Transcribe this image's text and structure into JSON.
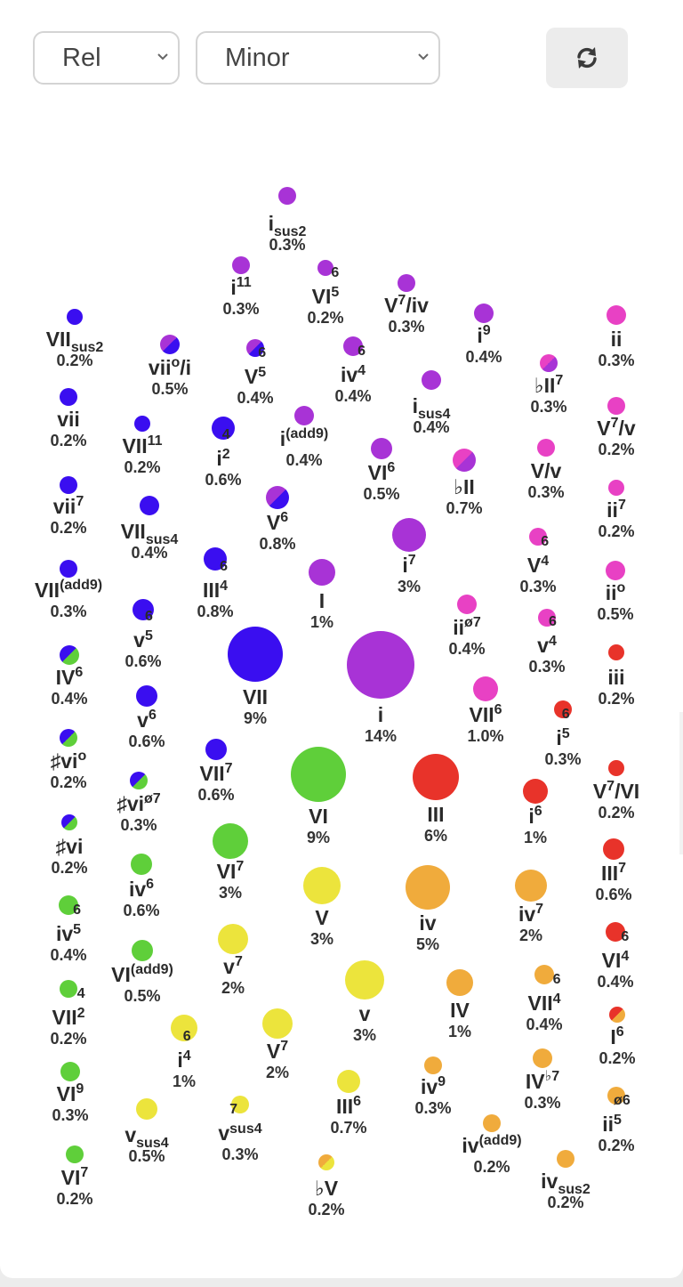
{
  "controls": {
    "mode_select": {
      "value": "Rel"
    },
    "scale_select": {
      "value": "Minor"
    },
    "refresh_button": {
      "icon": "refresh-icon"
    }
  },
  "colors": {
    "violet": "#a833d6",
    "blue": "#3a0ef0",
    "green": "#5fcf3a",
    "yellow": "#ece43c",
    "orange": "#f0ab3c",
    "red": "#e8332a",
    "pink": "#e841c4"
  },
  "chords": [
    {
      "id": "i-sus2",
      "base": "i",
      "sup": "",
      "sub": "sus2",
      "pct": "0.3%",
      "color": "violet"
    },
    {
      "id": "i-11",
      "base": "i",
      "sup": "11",
      "sub": "",
      "pct": "0.3%",
      "color": "violet"
    },
    {
      "id": "VI-6-5",
      "base": "VI",
      "sup": "6",
      "sub": "5",
      "pct": "0.2%",
      "color": "violet"
    },
    {
      "id": "V7-of-iv",
      "base": "V",
      "sup": "7",
      "sub": "",
      "tail": "/iv",
      "pct": "0.3%",
      "color": "violet"
    },
    {
      "id": "i-9",
      "base": "i",
      "sup": "9",
      "sub": "",
      "pct": "0.4%",
      "color": "violet"
    },
    {
      "id": "ii",
      "base": "ii",
      "sup": "",
      "sub": "",
      "pct": "0.3%",
      "color": "pink"
    },
    {
      "id": "VII-sus2",
      "base": "VII",
      "sup": "",
      "sub": "sus2",
      "pct": "0.2%",
      "color": "blue"
    },
    {
      "id": "vii-dim-of-i",
      "base": "vii",
      "sup": "o",
      "sub": "",
      "tail": "/i",
      "pct": "0.5%",
      "color": "violet",
      "color2": "blue"
    },
    {
      "id": "V-6-5",
      "base": "V",
      "sup": "6",
      "sub": "5",
      "pct": "0.4%",
      "color": "violet",
      "color2": "blue"
    },
    {
      "id": "iv-6-4",
      "base": "iv",
      "sup": "6",
      "sub": "4",
      "pct": "0.4%",
      "color": "violet"
    },
    {
      "id": "i-sus4",
      "base": "i",
      "sup": "",
      "sub": "sus4",
      "pct": "0.4%",
      "color": "violet"
    },
    {
      "id": "bII-7",
      "base": "♭II",
      "sup": "7",
      "sub": "",
      "pct": "0.3%",
      "color": "pink",
      "color2": "violet"
    },
    {
      "id": "V7-of-v",
      "base": "V",
      "sup": "7",
      "sub": "",
      "tail": "/v",
      "pct": "0.2%",
      "color": "pink"
    },
    {
      "id": "vii",
      "base": "vii",
      "sup": "",
      "sub": "",
      "pct": "0.2%",
      "color": "blue"
    },
    {
      "id": "VII-11",
      "base": "VII",
      "sup": "11",
      "sub": "",
      "pct": "0.2%",
      "color": "blue"
    },
    {
      "id": "i-4-2",
      "base": "i",
      "sup": "4",
      "sub": "2",
      "pct": "0.6%",
      "color": "blue"
    },
    {
      "id": "i-add9",
      "base": "i",
      "sup": "(add9)",
      "sub": "",
      "pct": "0.4%",
      "color": "violet"
    },
    {
      "id": "VI-6",
      "base": "VI",
      "sup": "6",
      "sub": "",
      "pct": "0.5%",
      "color": "violet"
    },
    {
      "id": "bII",
      "base": "♭II",
      "sup": "",
      "sub": "",
      "pct": "0.7%",
      "color": "pink",
      "color2": "violet"
    },
    {
      "id": "V-of-v",
      "base": "V/v",
      "sup": "",
      "sub": "",
      "pct": "0.3%",
      "color": "pink"
    },
    {
      "id": "vii-7",
      "base": "vii",
      "sup": "7",
      "sub": "",
      "pct": "0.2%",
      "color": "blue"
    },
    {
      "id": "V-6",
      "base": "V",
      "sup": "6",
      "sub": "",
      "pct": "0.8%",
      "color": "violet",
      "color2": "blue"
    },
    {
      "id": "ii-7",
      "base": "ii",
      "sup": "7",
      "sub": "",
      "pct": "0.2%",
      "color": "pink"
    },
    {
      "id": "VII-sus4",
      "base": "VII",
      "sup": "",
      "sub": "sus4",
      "pct": "0.4%",
      "color": "blue"
    },
    {
      "id": "i-7",
      "base": "i",
      "sup": "7",
      "sub": "",
      "pct": "3%",
      "color": "violet"
    },
    {
      "id": "V-6-4",
      "base": "V",
      "sup": "6",
      "sub": "4",
      "pct": "0.3%",
      "color": "pink"
    },
    {
      "id": "VII-add9",
      "base": "VII",
      "sup": "(add9)",
      "sub": "",
      "pct": "0.3%",
      "color": "blue"
    },
    {
      "id": "III-6-4",
      "base": "III",
      "sup": "6",
      "sub": "4",
      "pct": "0.8%",
      "color": "blue"
    },
    {
      "id": "I",
      "base": "I",
      "sup": "",
      "sub": "",
      "pct": "1%",
      "color": "violet"
    },
    {
      "id": "ii-dim",
      "base": "ii",
      "sup": "o",
      "sub": "",
      "pct": "0.5%",
      "color": "pink"
    },
    {
      "id": "v-6-5",
      "base": "v",
      "sup": "6",
      "sub": "5",
      "pct": "0.6%",
      "color": "blue"
    },
    {
      "id": "ii-hdim7",
      "base": "ii",
      "sup": "ø7",
      "sub": "",
      "pct": "0.4%",
      "color": "pink"
    },
    {
      "id": "v-6-4",
      "base": "v",
      "sup": "6",
      "sub": "4",
      "pct": "0.3%",
      "color": "pink"
    },
    {
      "id": "IV-6",
      "base": "IV",
      "sup": "6",
      "sub": "",
      "pct": "0.4%",
      "color": "blue",
      "color2": "green"
    },
    {
      "id": "VII",
      "base": "VII",
      "sup": "",
      "sub": "",
      "pct": "9%",
      "color": "blue"
    },
    {
      "id": "i",
      "base": "i",
      "sup": "",
      "sub": "",
      "pct": "14%",
      "color": "violet"
    },
    {
      "id": "iii",
      "base": "iii",
      "sup": "",
      "sub": "",
      "pct": "0.2%",
      "color": "red"
    },
    {
      "id": "VII-6",
      "base": "VII",
      "sup": "6",
      "sub": "",
      "pct": "1.0%",
      "color": "pink"
    },
    {
      "id": "v-6",
      "base": "v",
      "sup": "6",
      "sub": "",
      "pct": "0.6%",
      "color": "blue"
    },
    {
      "id": "i-6-5",
      "base": "i",
      "sup": "6",
      "sub": "5",
      "pct": "0.3%",
      "color": "red"
    },
    {
      "id": "sharp-vi-dim",
      "base": "♯vi",
      "sup": "o",
      "sub": "",
      "pct": "0.2%",
      "color": "blue",
      "color2": "green"
    },
    {
      "id": "VII-7",
      "base": "VII",
      "sup": "7",
      "sub": "",
      "pct": "0.6%",
      "color": "blue"
    },
    {
      "id": "VI",
      "base": "VI",
      "sup": "",
      "sub": "",
      "pct": "9%",
      "color": "green"
    },
    {
      "id": "III",
      "base": "III",
      "sup": "",
      "sub": "",
      "pct": "6%",
      "color": "red"
    },
    {
      "id": "V7-of-VI",
      "base": "V",
      "sup": "7",
      "sub": "",
      "tail": "/VI",
      "pct": "0.2%",
      "color": "red"
    },
    {
      "id": "i-6",
      "base": "i",
      "sup": "6",
      "sub": "",
      "pct": "1%",
      "color": "red"
    },
    {
      "id": "sharp-vi-hdim7",
      "base": "♯vi",
      "sup": "ø7",
      "sub": "",
      "pct": "0.3%",
      "color": "blue",
      "color2": "green"
    },
    {
      "id": "sharp-vi",
      "base": "♯vi",
      "sup": "",
      "sub": "",
      "pct": "0.2%",
      "color": "blue",
      "color2": "green"
    },
    {
      "id": "VI-7",
      "base": "VI",
      "sup": "7",
      "sub": "",
      "pct": "3%",
      "color": "green"
    },
    {
      "id": "III-7",
      "base": "III",
      "sup": "7",
      "sub": "",
      "pct": "0.6%",
      "color": "red"
    },
    {
      "id": "iv-6",
      "base": "iv",
      "sup": "6",
      "sub": "",
      "pct": "0.6%",
      "color": "green"
    },
    {
      "id": "V",
      "base": "V",
      "sup": "",
      "sub": "",
      "pct": "3%",
      "color": "yellow"
    },
    {
      "id": "iv",
      "base": "iv",
      "sup": "",
      "sub": "",
      "pct": "5%",
      "color": "orange"
    },
    {
      "id": "iv-7",
      "base": "iv",
      "sup": "7",
      "sub": "",
      "pct": "2%",
      "color": "orange"
    },
    {
      "id": "iv-6-5",
      "base": "iv",
      "sup": "6",
      "sub": "5",
      "pct": "0.4%",
      "color": "green"
    },
    {
      "id": "VI-add9",
      "base": "VI",
      "sup": "(add9)",
      "sub": "",
      "pct": "0.5%",
      "color": "green"
    },
    {
      "id": "v-7",
      "base": "v",
      "sup": "7",
      "sub": "",
      "pct": "2%",
      "color": "yellow"
    },
    {
      "id": "VI-6-4",
      "base": "VI",
      "sup": "6",
      "sub": "4",
      "pct": "0.4%",
      "color": "red"
    },
    {
      "id": "v",
      "base": "v",
      "sup": "",
      "sub": "",
      "pct": "3%",
      "color": "yellow"
    },
    {
      "id": "IV",
      "base": "IV",
      "sup": "",
      "sub": "",
      "pct": "1%",
      "color": "orange"
    },
    {
      "id": "VII-6-4",
      "base": "VII",
      "sup": "6",
      "sub": "4",
      "pct": "0.4%",
      "color": "orange"
    },
    {
      "id": "VII-4-2",
      "base": "VII",
      "sup": "4",
      "sub": "2",
      "pct": "0.2%",
      "color": "green"
    },
    {
      "id": "i-6-4",
      "base": "i",
      "sup": "6",
      "sub": "4",
      "pct": "1%",
      "color": "yellow"
    },
    {
      "id": "V-7",
      "base": "V",
      "sup": "7",
      "sub": "",
      "pct": "2%",
      "color": "yellow"
    },
    {
      "id": "I-6",
      "base": "I",
      "sup": "6",
      "sub": "",
      "pct": "0.2%",
      "color": "red",
      "color2": "orange"
    },
    {
      "id": "VI-9",
      "base": "VI",
      "sup": "9",
      "sub": "",
      "pct": "0.3%",
      "color": "green"
    },
    {
      "id": "III-6",
      "base": "III",
      "sup": "6",
      "sub": "",
      "pct": "0.7%",
      "color": "yellow"
    },
    {
      "id": "iv-9",
      "base": "iv",
      "sup": "9",
      "sub": "",
      "pct": "0.3%",
      "color": "orange"
    },
    {
      "id": "IV-b7",
      "base": "IV",
      "sup": "♭7",
      "sub": "",
      "pct": "0.3%",
      "color": "orange"
    },
    {
      "id": "ii-hdim6-5",
      "base": "ii",
      "sup": "ø6",
      "sub": "5",
      "pct": "0.2%",
      "color": "orange"
    },
    {
      "id": "v-sus4",
      "base": "v",
      "sup": "",
      "sub": "sus4",
      "pct": "0.5%",
      "color": "yellow"
    },
    {
      "id": "v7-sus4",
      "base": "v",
      "sup": "7",
      "sub": "sus4",
      "pct": "0.3%",
      "color": "yellow"
    },
    {
      "id": "iv-add9",
      "base": "iv",
      "sup": "(add9)",
      "sub": "",
      "pct": "0.2%",
      "color": "orange"
    },
    {
      "id": "VI-7-green",
      "base": "VI",
      "sup": "7",
      "sub": "",
      "pct": "0.2%",
      "color": "green"
    },
    {
      "id": "bV",
      "base": "♭V",
      "sup": "",
      "sub": "",
      "pct": "0.2%",
      "color": "orange",
      "color2": "yellow"
    },
    {
      "id": "iv-sus2",
      "base": "iv",
      "sup": "",
      "sub": "sus2",
      "pct": "0.2%",
      "color": "orange"
    }
  ]
}
